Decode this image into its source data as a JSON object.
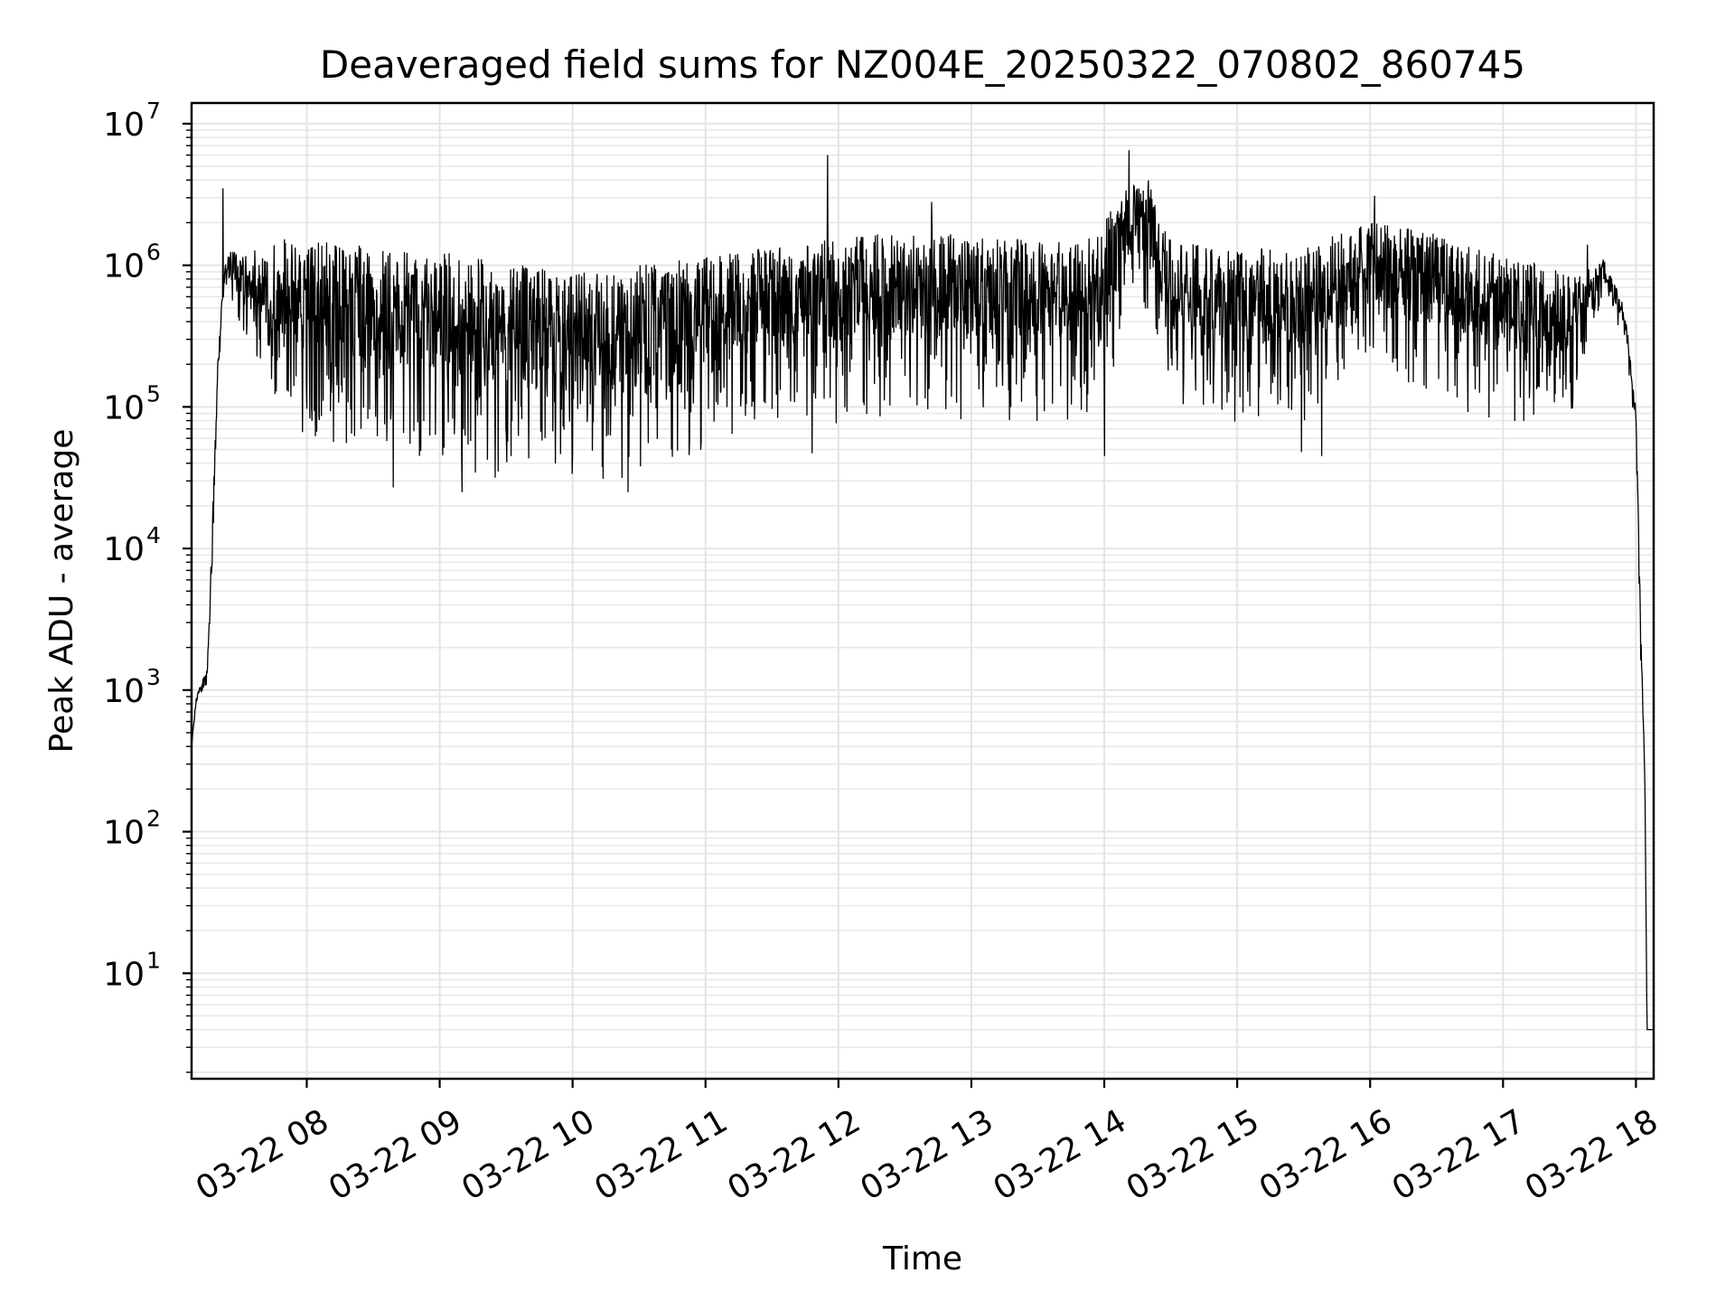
{
  "chart_data": {
    "type": "line",
    "title": "Deaveraged field sums for NZ004E_20250322_070802_860745",
    "xlabel": "Time",
    "ylabel": "Peak ADU - average",
    "y_scale": "log",
    "ylim": [
      1.8,
      14000000
    ],
    "xlim": [
      "2025-03-22 07:08",
      "2025-03-22 18:08"
    ],
    "grid": true,
    "line_color": "#000000",
    "x_ticks": [
      "03-22 08",
      "03-22 09",
      "03-22 10",
      "03-22 11",
      "03-22 12",
      "03-22 13",
      "03-22 14",
      "03-22 15",
      "03-22 16",
      "03-22 17",
      "03-22 18"
    ],
    "y_ticks": [
      {
        "value": 10,
        "base": "10",
        "exp": "1"
      },
      {
        "value": 100,
        "base": "10",
        "exp": "2"
      },
      {
        "value": 1000,
        "base": "10",
        "exp": "3"
      },
      {
        "value": 10000,
        "base": "10",
        "exp": "4"
      },
      {
        "value": 100000,
        "base": "10",
        "exp": "5"
      },
      {
        "value": 1000000,
        "base": "10",
        "exp": "6"
      },
      {
        "value": 10000000,
        "base": "10",
        "exp": "7"
      }
    ],
    "series": [
      {
        "upper_envelope": [
          [
            "2025-03-22 07:08",
            400
          ],
          [
            "2025-03-22 07:10",
            900
          ],
          [
            "2025-03-22 07:13",
            1200
          ],
          [
            "2025-03-22 07:15",
            1400
          ],
          [
            "2025-03-22 07:17",
            10000
          ],
          [
            "2025-03-22 07:20",
            300000
          ],
          [
            "2025-03-22 07:23",
            1000000
          ],
          [
            "2025-03-22 07:25",
            1300000
          ],
          [
            "2025-03-22 07:30",
            1200000
          ],
          [
            "2025-03-22 07:40",
            1400000
          ],
          [
            "2025-03-22 07:50",
            1600000
          ],
          [
            "2025-03-22 08:00",
            1500000
          ],
          [
            "2025-03-22 08:30",
            1350000
          ],
          [
            "2025-03-22 09:00",
            1250000
          ],
          [
            "2025-03-22 09:30",
            1050000
          ],
          [
            "2025-03-22 10:00",
            950000
          ],
          [
            "2025-03-22 10:30",
            1000000
          ],
          [
            "2025-03-22 11:00",
            1150000
          ],
          [
            "2025-03-22 11:30",
            1400000
          ],
          [
            "2025-03-22 12:00",
            1600000
          ],
          [
            "2025-03-22 12:30",
            1700000
          ],
          [
            "2025-03-22 13:00",
            1650000
          ],
          [
            "2025-03-22 13:30",
            1500000
          ],
          [
            "2025-03-22 13:55",
            1600000
          ],
          [
            "2025-03-22 14:10",
            3500000
          ],
          [
            "2025-03-22 14:20",
            4000000
          ],
          [
            "2025-03-22 14:30",
            1500000
          ],
          [
            "2025-03-22 15:00",
            1300000
          ],
          [
            "2025-03-22 15:30",
            1350000
          ],
          [
            "2025-03-22 16:00",
            2000000
          ],
          [
            "2025-03-22 16:30",
            1700000
          ],
          [
            "2025-03-22 17:00",
            1150000
          ],
          [
            "2025-03-22 17:30",
            900000
          ],
          [
            "2025-03-22 17:45",
            1150000
          ],
          [
            "2025-03-22 17:55",
            500000
          ],
          [
            "2025-03-22 18:00",
            100000
          ],
          [
            "2025-03-22 18:02",
            4000
          ],
          [
            "2025-03-22 18:04",
            300
          ],
          [
            "2025-03-22 18:05",
            4
          ],
          [
            "2025-03-22 18:08",
            4
          ]
        ],
        "lower_envelope": [
          [
            "2025-03-22 07:08",
            400
          ],
          [
            "2025-03-22 07:10",
            800
          ],
          [
            "2025-03-22 07:13",
            1000
          ],
          [
            "2025-03-22 07:15",
            1100
          ],
          [
            "2025-03-22 07:17",
            5000
          ],
          [
            "2025-03-22 07:20",
            150000
          ],
          [
            "2025-03-22 07:23",
            700000
          ],
          [
            "2025-03-22 07:27",
            400000
          ],
          [
            "2025-03-22 07:35",
            250000
          ],
          [
            "2025-03-22 07:45",
            120000
          ],
          [
            "2025-03-22 08:00",
            45000
          ],
          [
            "2025-03-22 08:30",
            38000
          ],
          [
            "2025-03-22 09:00",
            33000
          ],
          [
            "2025-03-22 09:30",
            29000
          ],
          [
            "2025-03-22 10:00",
            27000
          ],
          [
            "2025-03-22 10:30",
            29000
          ],
          [
            "2025-03-22 11:00",
            45000
          ],
          [
            "2025-03-22 11:30",
            65000
          ],
          [
            "2025-03-22 12:00",
            75000
          ],
          [
            "2025-03-22 12:30",
            80000
          ],
          [
            "2025-03-22 13:00",
            80000
          ],
          [
            "2025-03-22 13:30",
            75000
          ],
          [
            "2025-03-22 14:00",
            80000
          ],
          [
            "2025-03-22 14:15",
            800000
          ],
          [
            "2025-03-22 14:30",
            100000
          ],
          [
            "2025-03-22 15:00",
            75000
          ],
          [
            "2025-03-22 15:30",
            70000
          ],
          [
            "2025-03-22 16:00",
            220000
          ],
          [
            "2025-03-22 16:30",
            110000
          ],
          [
            "2025-03-22 17:00",
            70000
          ],
          [
            "2025-03-22 17:30",
            75000
          ],
          [
            "2025-03-22 17:45",
            600000
          ],
          [
            "2025-03-22 17:55",
            300000
          ],
          [
            "2025-03-22 18:00",
            60000
          ],
          [
            "2025-03-22 18:02",
            2000
          ],
          [
            "2025-03-22 18:04",
            150
          ],
          [
            "2025-03-22 18:05",
            4
          ],
          [
            "2025-03-22 18:08",
            4
          ]
        ],
        "spikes": [
          [
            "2025-03-22 07:22",
            3500000
          ],
          [
            "2025-03-22 11:55",
            6000000
          ],
          [
            "2025-03-22 12:42",
            2800000
          ],
          [
            "2025-03-22 14:11",
            6500000
          ],
          [
            "2025-03-22 16:02",
            3100000
          ],
          [
            "2025-03-22 17:38",
            1400000
          ]
        ],
        "dips": [
          [
            "2025-03-22 08:39",
            27000
          ],
          [
            "2025-03-22 09:10",
            25000
          ],
          [
            "2025-03-22 10:25",
            25000
          ],
          [
            "2025-03-22 11:48",
            47000
          ],
          [
            "2025-03-22 14:00",
            45000
          ],
          [
            "2025-03-22 15:38",
            45000
          ],
          [
            "2025-03-22 15:29",
            48000
          ]
        ]
      }
    ]
  }
}
